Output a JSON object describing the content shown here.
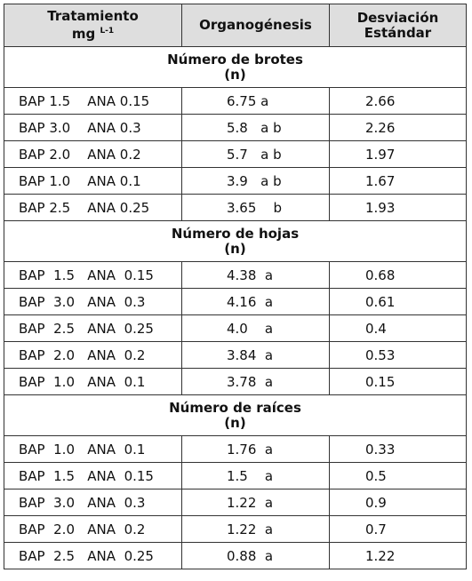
{
  "table": {
    "header": {
      "treatment": {
        "text": "Tratamiento",
        "unit": "mg",
        "unit_exponent": "L-1"
      },
      "organogenesis": "Organogénesis",
      "std": [
        "Desviación",
        "Estándar"
      ]
    },
    "sections": [
      {
        "title": "Número de brotes",
        "subtitle": "(n)",
        "rows": [
          [
            "BAP 1.5    ANA 0.15",
            "6.75 a",
            "2.66"
          ],
          [
            "BAP 3.0    ANA 0.3",
            "5.8   a b",
            "2.26"
          ],
          [
            "BAP 2.0    ANA 0.2",
            "5.7   a b",
            "1.97"
          ],
          [
            "BAP 1.0    ANA 0.1",
            "3.9   a b",
            "1.67"
          ],
          [
            "BAP 2.5    ANA 0.25",
            "3.65    b",
            "1.93"
          ]
        ]
      },
      {
        "title": "Número de hojas",
        "subtitle": "(n)",
        "rows": [
          [
            "BAP  1.5   ANA  0.15",
            "4.38  a",
            "0.68"
          ],
          [
            "BAP  3.0   ANA  0.3",
            "4.16  a",
            "0.61"
          ],
          [
            "BAP  2.5   ANA  0.25",
            "4.0    a",
            "0.4"
          ],
          [
            "BAP  2.0   ANA  0.2",
            "3.84  a",
            "0.53"
          ],
          [
            "BAP  1.0   ANA  0.1",
            "3.78  a",
            "0.15"
          ]
        ]
      },
      {
        "title": "Número de raíces",
        "subtitle": "(n)",
        "rows": [
          [
            "BAP  1.0   ANA  0.1",
            "1.76  a",
            "0.33"
          ],
          [
            "BAP  1.5   ANA  0.15",
            "1.5    a",
            "0.5"
          ],
          [
            "BAP  3.0   ANA  0.3",
            "1.22  a",
            "0.9"
          ],
          [
            "BAP  2.0   ANA  0.2",
            "1.22  a",
            "0.7"
          ],
          [
            "BAP  2.5   ANA  0.25",
            "0.88  a",
            "1.22"
          ]
        ]
      }
    ]
  }
}
